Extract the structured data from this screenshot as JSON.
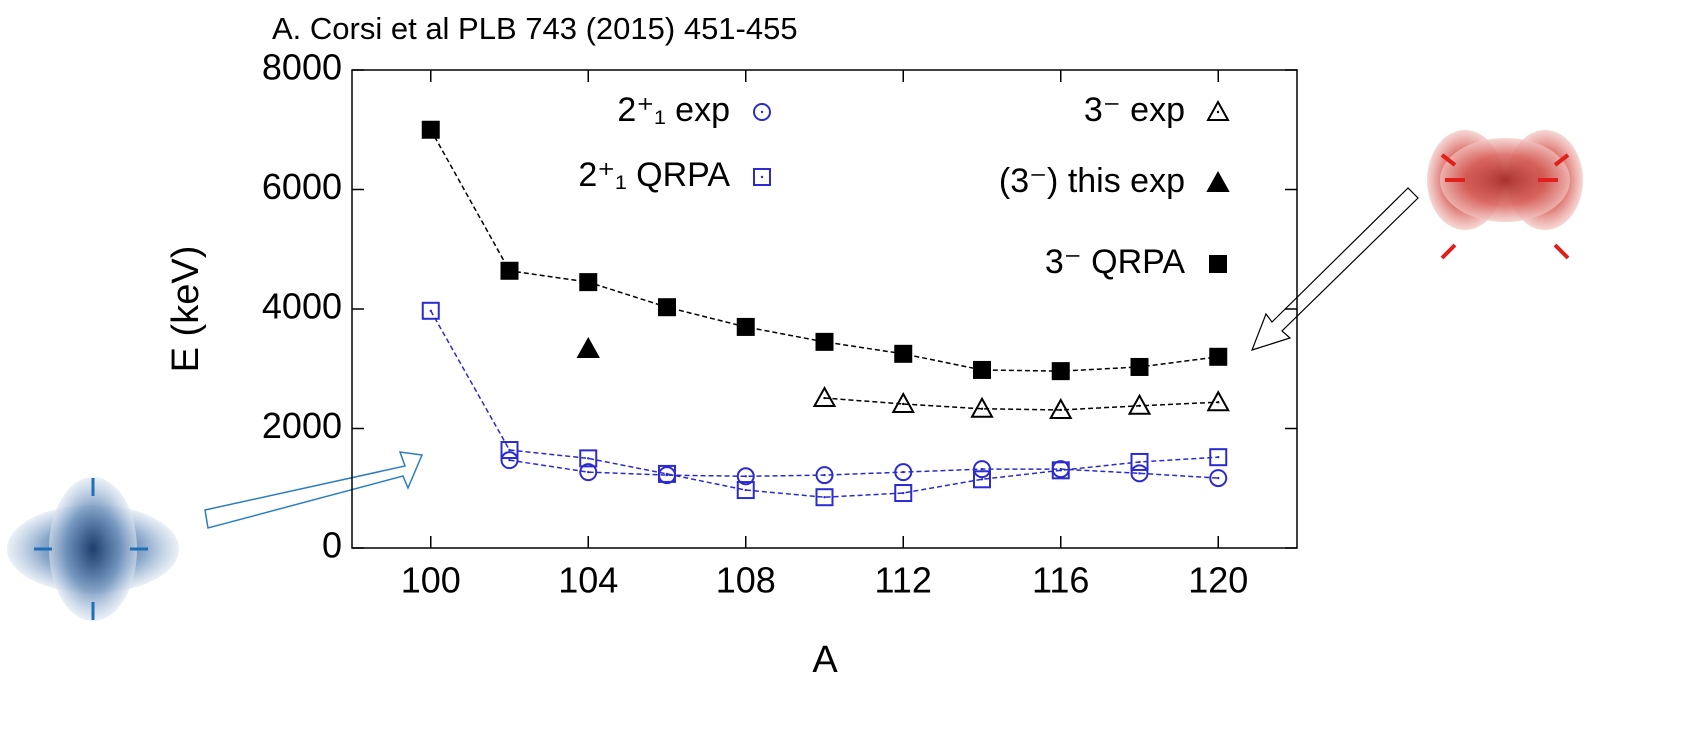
{
  "chart_data": {
    "type": "line",
    "annotation": "A. Corsi et al PLB 743 (2015) 451-455",
    "xlabel": "A",
    "ylabel": "E (keV)",
    "x": [
      100,
      102,
      104,
      106,
      108,
      110,
      112,
      114,
      116,
      118,
      120
    ],
    "xlim": [
      98,
      122
    ],
    "xticks": [
      100,
      104,
      108,
      112,
      116,
      120
    ],
    "ylim": [
      0,
      8000
    ],
    "yticks": [
      0,
      2000,
      4000,
      6000,
      8000
    ],
    "series": [
      {
        "name": "2⁺₁ exp",
        "color": "#2b2bd0",
        "marker": "circle-open",
        "line": true,
        "values": [
          null,
          1470,
          1270,
          1220,
          1200,
          1220,
          1270,
          1320,
          1320,
          1250,
          1170
        ]
      },
      {
        "name": "2⁺₁ QRPA",
        "color": "#2b2bd0",
        "marker": "square-open",
        "line": true,
        "values": [
          3970,
          1640,
          1500,
          1240,
          970,
          850,
          920,
          1150,
          1300,
          1440,
          1520
        ]
      },
      {
        "name": "3⁻ exp",
        "color": "#000000",
        "marker": "triangle-open",
        "line": true,
        "values": [
          null,
          null,
          null,
          null,
          null,
          2510,
          2410,
          2330,
          2310,
          2380,
          2440
        ]
      },
      {
        "name": "(3⁻) this exp",
        "color": "#000000",
        "marker": "triangle-filled",
        "line": false,
        "values": [
          null,
          null,
          3330,
          null,
          null,
          null,
          null,
          null,
          null,
          null,
          null
        ]
      },
      {
        "name": "3⁻ QRPA",
        "color": "#000000",
        "marker": "square-filled",
        "line": true,
        "values": [
          7000,
          4640,
          4450,
          4030,
          3700,
          3450,
          3250,
          2980,
          2960,
          3030,
          3200
        ]
      }
    ]
  }
}
